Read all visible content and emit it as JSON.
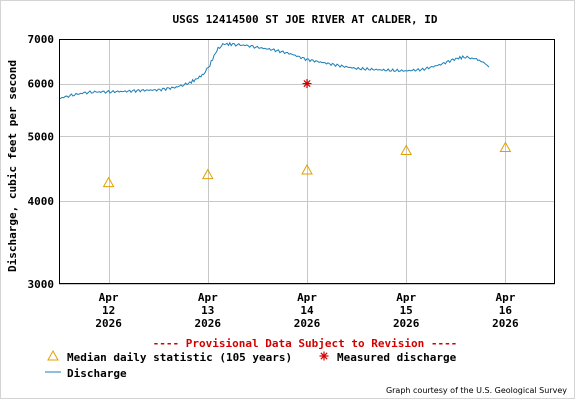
{
  "chart_data": {
    "type": "line",
    "title": "USGS 12414500 ST JOE RIVER AT CALDER, ID",
    "ylabel": "Discharge, cubic feet per second",
    "xlabel": "",
    "y_scale": "log",
    "ylim": [
      3000,
      7000
    ],
    "y_ticks": [
      "3000",
      "4000",
      "5000",
      "6000",
      "7000"
    ],
    "xlim": [
      "2026-04-11 12:00",
      "2026-04-16 12:00"
    ],
    "x_ticks": [
      {
        "at": "2026-04-12 00:00",
        "label": [
          "Apr",
          "12",
          "2026"
        ]
      },
      {
        "at": "2026-04-13 00:00",
        "label": [
          "Apr",
          "13",
          "2026"
        ]
      },
      {
        "at": "2026-04-14 00:00",
        "label": [
          "Apr",
          "14",
          "2026"
        ]
      },
      {
        "at": "2026-04-15 00:00",
        "label": [
          "Apr",
          "15",
          "2026"
        ]
      },
      {
        "at": "2026-04-16 00:00",
        "label": [
          "Apr",
          "16",
          "2026"
        ]
      }
    ],
    "grid": true,
    "provisional_note": "---- Provisional Data Subject to Revision ----",
    "legend": {
      "placement": "bottom",
      "median": "Median daily statistic (105 years)",
      "measured": "Measured discharge",
      "discharge": "Discharge"
    },
    "credit": "Graph courtesy of the U.S. Geological Survey",
    "colors": {
      "discharge": "#1a7fb8",
      "median": "#e0a000",
      "measured": "#d40000",
      "grid": "#c8c8c8"
    },
    "series": [
      {
        "name": "Discharge",
        "kind": "line",
        "points": [
          [
            "2026-04-11 12:00",
            5700
          ],
          [
            "2026-04-11 15:00",
            5760
          ],
          [
            "2026-04-11 18:00",
            5810
          ],
          [
            "2026-04-11 21:00",
            5830
          ],
          [
            "2026-04-12 00:00",
            5830
          ],
          [
            "2026-04-12 04:00",
            5840
          ],
          [
            "2026-04-12 08:00",
            5860
          ],
          [
            "2026-04-12 12:00",
            5870
          ],
          [
            "2026-04-12 16:00",
            5920
          ],
          [
            "2026-04-12 19:00",
            5990
          ],
          [
            "2026-04-12 21:00",
            6080
          ],
          [
            "2026-04-12 23:00",
            6200
          ],
          [
            "2026-04-13 00:30",
            6400
          ],
          [
            "2026-04-13 01:30",
            6600
          ],
          [
            "2026-04-13 02:30",
            6780
          ],
          [
            "2026-04-13 04:00",
            6880
          ],
          [
            "2026-04-13 06:00",
            6870
          ],
          [
            "2026-04-13 09:00",
            6850
          ],
          [
            "2026-04-13 12:00",
            6800
          ],
          [
            "2026-04-13 16:00",
            6740
          ],
          [
            "2026-04-13 20:00",
            6650
          ],
          [
            "2026-04-14 00:00",
            6520
          ],
          [
            "2026-04-14 04:00",
            6450
          ],
          [
            "2026-04-14 08:00",
            6380
          ],
          [
            "2026-04-14 12:00",
            6320
          ],
          [
            "2026-04-14 16:00",
            6300
          ],
          [
            "2026-04-14 20:00",
            6280
          ],
          [
            "2026-04-15 00:00",
            6270
          ],
          [
            "2026-04-15 04:00",
            6300
          ],
          [
            "2026-04-15 08:00",
            6400
          ],
          [
            "2026-04-15 12:00",
            6540
          ],
          [
            "2026-04-15 14:00",
            6580
          ],
          [
            "2026-04-15 17:00",
            6530
          ],
          [
            "2026-04-15 19:00",
            6440
          ],
          [
            "2026-04-15 20:00",
            6350
          ]
        ]
      },
      {
        "name": "Median daily statistic (105 years)",
        "kind": "marker",
        "points": [
          [
            "2026-04-12 00:00",
            4260
          ],
          [
            "2026-04-13 00:00",
            4380
          ],
          [
            "2026-04-14 00:00",
            4450
          ],
          [
            "2026-04-15 00:00",
            4760
          ],
          [
            "2026-04-16 00:00",
            4810
          ]
        ]
      },
      {
        "name": "Measured discharge",
        "kind": "marker",
        "points": [
          [
            "2026-04-14 00:00",
            6000
          ]
        ]
      }
    ]
  }
}
